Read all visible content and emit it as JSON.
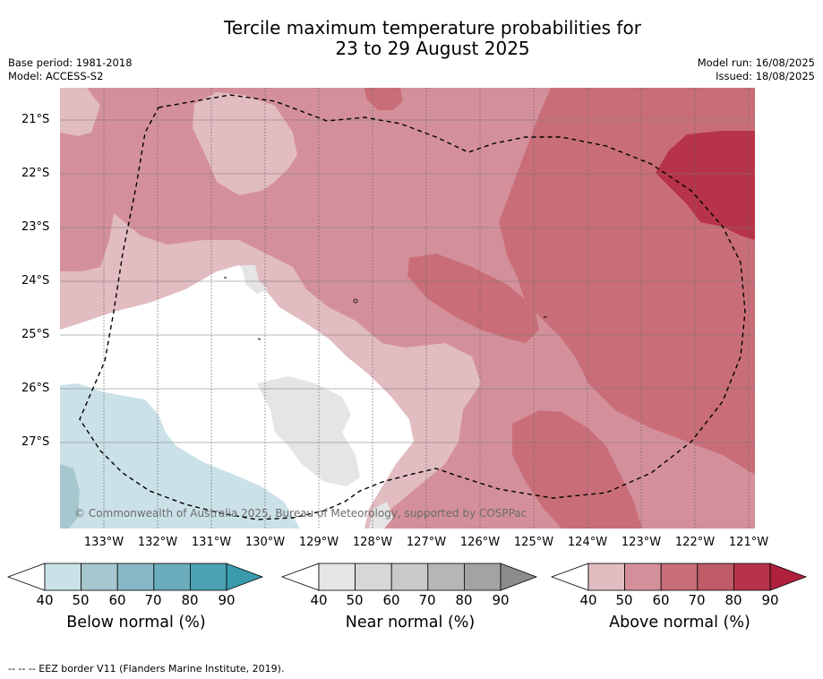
{
  "header": {
    "title_line1": "Tercile maximum temperature probabilities for",
    "title_line2": "23 to 29 August 2025",
    "base_period": "Base period: 1981-2018",
    "model": "Model: ACCESS-S2",
    "model_run": "Model run: 16/08/2025",
    "issued": "Issued: 18/08/2025"
  },
  "map": {
    "copyright": "© Commonwealth of Australia 2025, Bureau of Meteorology, supported by COSPPac",
    "lat_labels": [
      "21°S",
      "22°S",
      "23°S",
      "24°S",
      "25°S",
      "26°S",
      "27°S"
    ],
    "lon_labels": [
      "133°W",
      "132°W",
      "131°W",
      "130°W",
      "129°W",
      "128°W",
      "127°W",
      "126°W",
      "125°W",
      "124°W",
      "123°W",
      "122°W",
      "121°W"
    ],
    "colors": {
      "below": [
        "#cbe1e8",
        "#a6c7cd",
        "#88b8c5",
        "#6bacbd",
        "#4aa2b2",
        "#3a9aae"
      ],
      "near": [
        "#e5e5e5",
        "#d7d7d7",
        "#c9c9c9",
        "#b6b6b6",
        "#a3a3a3",
        "#8c8c8c"
      ],
      "above": [
        "#e1bcc1",
        "#d4909a",
        "#c96e79",
        "#c05b68",
        "#b7334a",
        "#b0213e"
      ]
    }
  },
  "legend": {
    "tick_labels": [
      "40",
      "50",
      "60",
      "70",
      "80",
      "90"
    ],
    "below_label": "Below normal (%)",
    "near_label": "Near normal (%)",
    "above_label": "Above normal (%)"
  },
  "footer": {
    "eez_note": "--  --  -- EEZ border V11 (Flanders Marine Institute, 2019)."
  }
}
